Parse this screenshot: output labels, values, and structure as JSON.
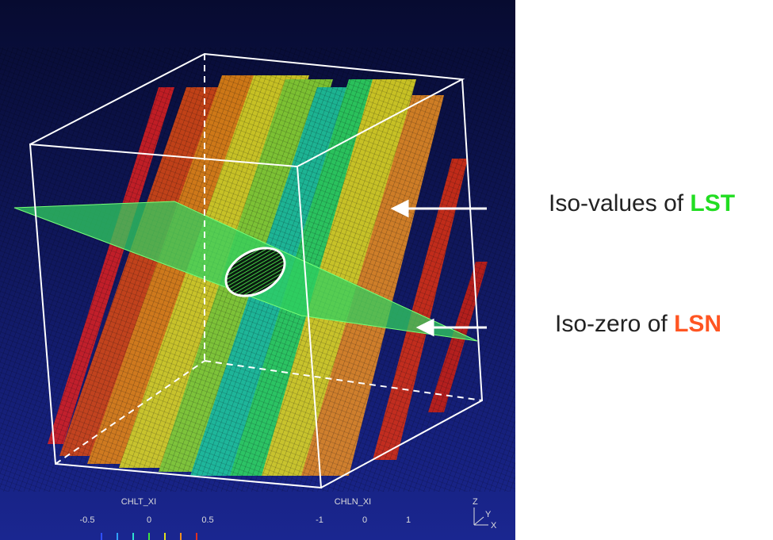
{
  "labels": {
    "lst_prefix": "Iso-values of ",
    "lst_name": "LST",
    "lsn_prefix": "Iso-zero of ",
    "lsn_name": "LSN"
  },
  "colorbars": [
    {
      "title": "CHLT_XI",
      "ticks": [
        "-0.5",
        "0",
        "0.5"
      ]
    },
    {
      "title": "CHLN_XI",
      "ticks": [
        "-1",
        "0",
        "1"
      ]
    }
  ],
  "axes": [
    "Z",
    "Y",
    "X"
  ]
}
